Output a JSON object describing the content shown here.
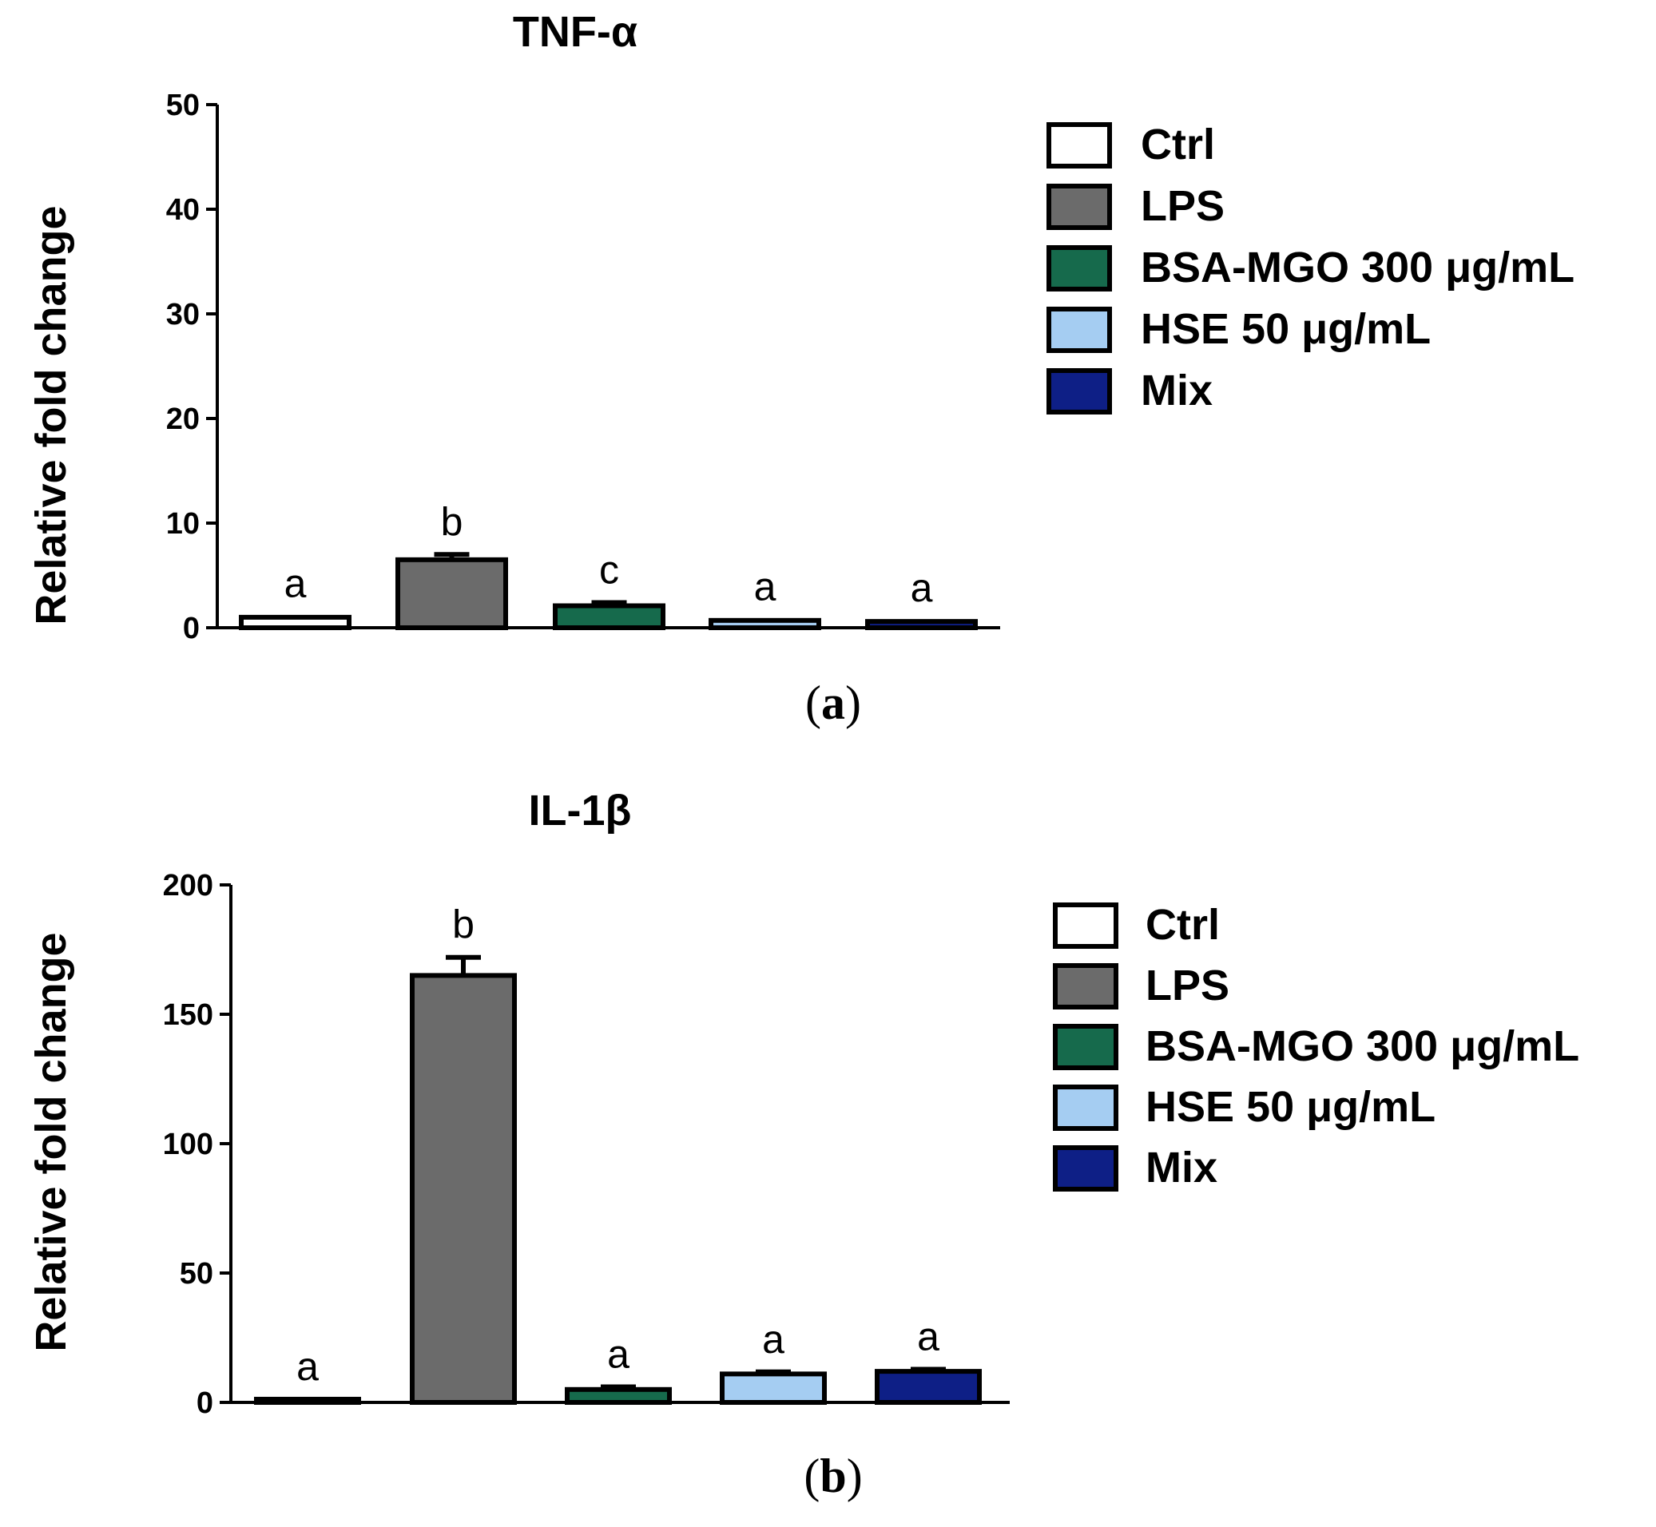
{
  "colors": {
    "Ctrl": "#ffffff",
    "LPS": "#6b6b6b",
    "BSA-MGO": "#166a4c",
    "HSE": "#a5cdf2",
    "Mix": "#0e1f86"
  },
  "chart_data": [
    {
      "type": "bar",
      "panel": "(a)",
      "title": "TNF-α",
      "ylabel": "Relative fold change",
      "xlabel": "",
      "ylim": [
        0,
        50
      ],
      "yticks": [
        0,
        10,
        20,
        30,
        40,
        50
      ],
      "categories": [
        "Ctrl",
        "LPS",
        "BSA-MGO 300 μg/mL",
        "HSE 50 μg/mL",
        "Mix"
      ],
      "values": [
        1.0,
        6.5,
        2.1,
        0.7,
        0.6
      ],
      "errors": [
        0.1,
        0.5,
        0.3,
        0.1,
        0.1
      ],
      "significance": [
        "a",
        "b",
        "c",
        "a",
        "a"
      ],
      "legend": {
        "placement": "right",
        "entries": [
          "Ctrl",
          "LPS",
          "BSA-MGO 300 μg/mL",
          "HSE 50 μg/mL",
          "Mix"
        ]
      }
    },
    {
      "type": "bar",
      "panel": "(b)",
      "title": "IL-1β",
      "ylabel": "Relative fold change",
      "xlabel": "",
      "ylim": [
        0,
        200
      ],
      "yticks": [
        0,
        50,
        100,
        150,
        200
      ],
      "categories": [
        "Ctrl",
        "LPS",
        "BSA-MGO 300 μg/mL",
        "HSE 50 μg/mL",
        "Mix"
      ],
      "values": [
        1.0,
        165,
        5,
        11,
        12
      ],
      "errors": [
        0.2,
        7,
        1,
        0.8,
        0.8
      ],
      "significance": [
        "a",
        "b",
        "a",
        "a",
        "a"
      ],
      "legend": {
        "placement": "right",
        "entries": [
          "Ctrl",
          "LPS",
          "BSA-MGO 300 μg/mL",
          "HSE 50 μg/mL",
          "Mix"
        ]
      }
    }
  ]
}
